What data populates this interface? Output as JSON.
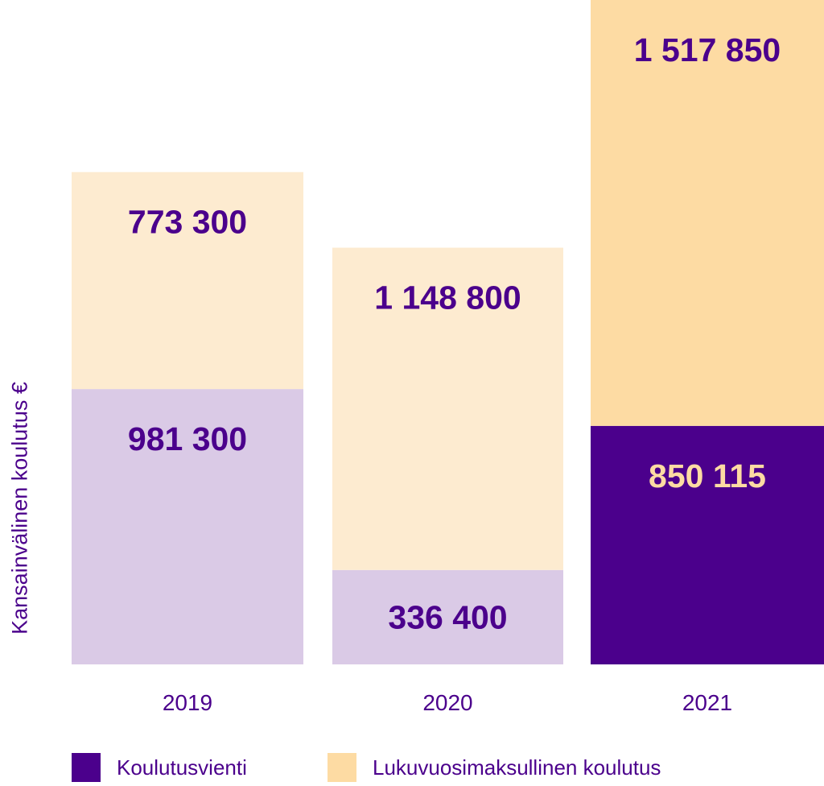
{
  "chart_data": {
    "type": "bar",
    "stacked": true,
    "title": "",
    "xlabel": "",
    "ylabel": "Kansainvälinen koulutus €",
    "categories": [
      "2019",
      "2020",
      "2021"
    ],
    "series": [
      {
        "name": "Koulutusvienti",
        "values": [
          981300,
          336400,
          850115
        ],
        "labels": [
          "981 300",
          "336 400",
          "850 115"
        ],
        "color": "#4B008C",
        "faded_color": "#DACAE6"
      },
      {
        "name": "Lukuvuosimaksullinen koulutus",
        "values": [
          773300,
          1148800,
          1517850
        ],
        "labels": [
          "773 300",
          "1 148 800",
          "1 517 850"
        ],
        "color": "#FDDBA3",
        "faded_color": "#FDEBD0"
      }
    ],
    "highlighted_category": "2021",
    "ylim": [
      0,
      2367965
    ],
    "grid": false,
    "legend_position": "bottom"
  }
}
